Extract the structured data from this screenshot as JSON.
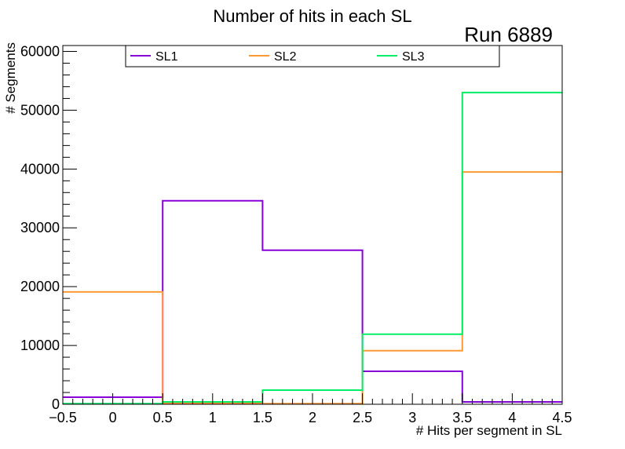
{
  "chart_data": {
    "type": "step-histogram",
    "title": "Number of hits in each SL",
    "annotation": "Run 6889",
    "xlabel": "# Hits per segment in SL",
    "ylabel": "# Segments",
    "xlim": [
      -0.5,
      4.5
    ],
    "ylim": [
      0,
      61000
    ],
    "x_tick_labels": [
      "−0.5",
      "0",
      "0.5",
      "1",
      "1.5",
      "2",
      "2.5",
      "3",
      "3.5",
      "4",
      "4.5"
    ],
    "x_tick_values": [
      -0.5,
      0,
      0.5,
      1,
      1.5,
      2,
      2.5,
      3,
      3.5,
      4,
      4.5
    ],
    "y_tick_labels": [
      "0",
      "10000",
      "20000",
      "30000",
      "40000",
      "50000",
      "60000"
    ],
    "y_tick_values": [
      0,
      10000,
      20000,
      30000,
      40000,
      50000,
      60000
    ],
    "bin_edges": [
      -0.5,
      0.5,
      1.5,
      2.5,
      3.5,
      4.5
    ],
    "series": [
      {
        "name": "SL1",
        "color": "#8800d8",
        "values": [
          1200,
          34600,
          26200,
          5600,
          400
        ]
      },
      {
        "name": "SL2",
        "color": "#ff9933",
        "values": [
          19100,
          200,
          100,
          9100,
          39500
        ]
      },
      {
        "name": "SL3",
        "color": "#00ee66",
        "values": [
          100,
          400,
          2400,
          11900,
          53000
        ]
      }
    ],
    "legend_position": "top"
  }
}
